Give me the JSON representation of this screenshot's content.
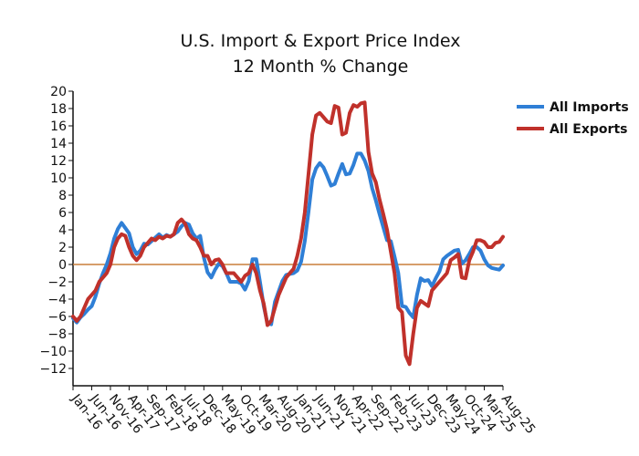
{
  "chart_data": {
    "type": "line",
    "title": "U.S. Import & Export Price Index",
    "subtitle": "12 Month % Change",
    "xlabel": "",
    "ylabel": "",
    "ylim": [
      -14,
      20
    ],
    "yticks": [
      20,
      18,
      16,
      14,
      12,
      10,
      8,
      6,
      4,
      2,
      0,
      -2,
      -4,
      -6,
      -8,
      -10,
      -12
    ],
    "x_start": "2016-01",
    "xticks": [
      "Jan-16",
      "Jun-16",
      "Nov-16",
      "Apr-17",
      "Sep-17",
      "Feb-18",
      "Jul-18",
      "Dec-18",
      "May-19",
      "Oct-19",
      "Mar-20",
      "Aug-20",
      "Jan-21",
      "Jun-21",
      "Nov-21",
      "Apr-22",
      "Sep-22",
      "Feb-23",
      "Jul-23",
      "Dec-23",
      "May-24",
      "Oct-24",
      "Mar-25",
      "Aug-25"
    ],
    "legend_position": "right",
    "grid": false,
    "zero_line": true,
    "zero_line_color": "#c87f3a",
    "series": [
      {
        "name": "All Imports",
        "color": "#2f7fd6",
        "values": [
          -6.2,
          -6.7,
          -6.1,
          -5.7,
          -5.2,
          -4.8,
          -3.7,
          -2.2,
          -1.0,
          0.0,
          1.3,
          3.0,
          4.1,
          4.8,
          4.2,
          3.6,
          2.0,
          1.2,
          1.6,
          2.4,
          2.3,
          2.7,
          3.1,
          3.5,
          3.1,
          3.4,
          3.2,
          3.5,
          3.8,
          4.4,
          4.8,
          4.6,
          3.6,
          3.0,
          3.3,
          0.8,
          -0.9,
          -1.5,
          -0.6,
          0.1,
          -0.2,
          -1.0,
          -2.0,
          -2.0,
          -2.0,
          -2.2,
          -2.9,
          -1.9,
          0.6,
          0.6,
          -2.0,
          -4.8,
          -6.8,
          -6.9,
          -4.3,
          -3.1,
          -1.9,
          -1.2,
          -1.1,
          -1.0,
          -0.7,
          0.3,
          2.7,
          6.1,
          9.8,
          11.1,
          11.7,
          11.2,
          10.2,
          9.1,
          9.3,
          10.5,
          11.6,
          10.4,
          10.5,
          11.5,
          12.8,
          12.8,
          12.0,
          10.8,
          8.8,
          7.4,
          5.8,
          4.3,
          2.8,
          2.7,
          0.9,
          -1.0,
          -4.8,
          -4.9,
          -5.6,
          -6.1,
          -3.5,
          -1.6,
          -1.9,
          -1.8,
          -2.5,
          -1.6,
          -0.8,
          0.6,
          1.0,
          1.3,
          1.6,
          1.7,
          0.1,
          0.5,
          1.2,
          2.0,
          2.0,
          1.6,
          0.6,
          -0.1,
          -0.4,
          -0.5,
          -0.6,
          -0.1
        ]
      },
      {
        "name": "All Exports",
        "color": "#c0312b",
        "values": [
          -6.0,
          -6.5,
          -6.0,
          -5.0,
          -4.0,
          -3.5,
          -3.0,
          -2.0,
          -1.5,
          -1.0,
          0.0,
          2.0,
          3.0,
          3.5,
          3.3,
          2.0,
          1.0,
          0.5,
          1.0,
          2.0,
          2.5,
          3.0,
          2.8,
          3.2,
          3.0,
          3.3,
          3.2,
          3.5,
          4.8,
          5.2,
          4.7,
          3.5,
          3.0,
          2.8,
          2.0,
          1.0,
          1.0,
          0.0,
          0.5,
          0.6,
          0.0,
          -1.0,
          -1.0,
          -1.0,
          -1.5,
          -2.0,
          -1.3,
          -1.0,
          0.0,
          -1.0,
          -3.0,
          -4.5,
          -7.0,
          -6.5,
          -5.0,
          -3.5,
          -2.5,
          -1.5,
          -1.0,
          -0.5,
          1.0,
          3.0,
          6.0,
          10.5,
          15.0,
          17.2,
          17.5,
          17.0,
          16.5,
          16.3,
          18.3,
          18.1,
          15.0,
          15.2,
          17.5,
          18.4,
          18.2,
          18.6,
          18.7,
          13.0,
          10.5,
          9.5,
          7.5,
          5.8,
          4.0,
          1.5,
          -1.0,
          -5.0,
          -5.5,
          -10.5,
          -11.5,
          -8.0,
          -5.0,
          -4.2,
          -4.5,
          -4.8,
          -3.0,
          -2.5,
          -2.0,
          -1.5,
          -1.0,
          0.5,
          0.8,
          1.2,
          -1.5,
          -1.6,
          0.5,
          1.5,
          2.8,
          2.8,
          2.6,
          2.0,
          2.0,
          2.5,
          2.6,
          3.2
        ]
      }
    ]
  }
}
